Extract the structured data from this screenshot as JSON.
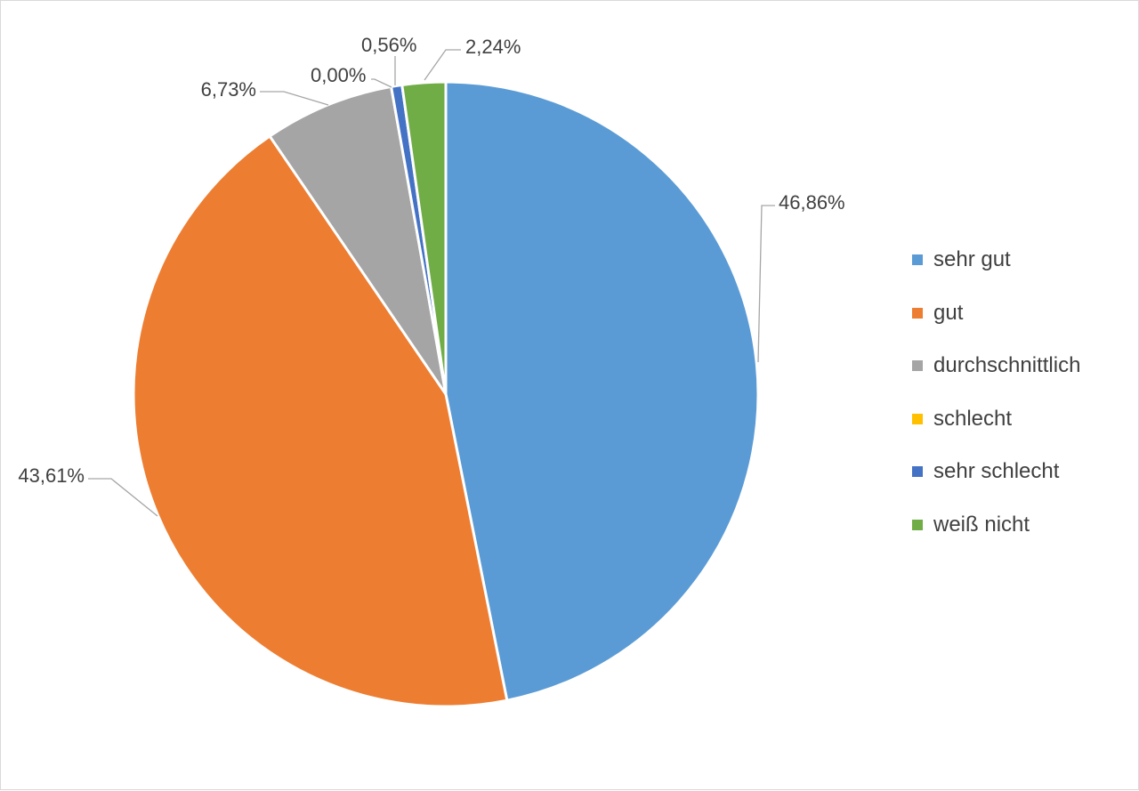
{
  "chart_data": {
    "type": "pie",
    "title": "",
    "start_angle_deg": 0,
    "direction": "clockwise",
    "legend_position": "right",
    "categories": [
      "sehr gut",
      "gut",
      "durchschnittlich",
      "schlecht",
      "sehr schlecht",
      "weiß nicht"
    ],
    "values": [
      46.86,
      43.61,
      6.73,
      0.0,
      0.56,
      2.24
    ],
    "data_labels": [
      "46,86%",
      "43,61%",
      "6,73%",
      "0,00%",
      "0,56%",
      "2,24%"
    ],
    "colors": [
      "#5b9bd5",
      "#ed7d31",
      "#a5a5a5",
      "#ffc000",
      "#4472c4",
      "#70ad47"
    ]
  }
}
